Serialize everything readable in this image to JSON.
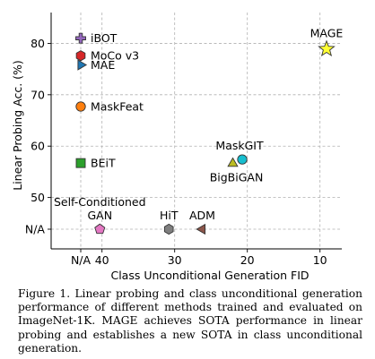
{
  "chart_data": {
    "type": "scatter",
    "title": "",
    "xlabel": "Class Unconditional Generation FID",
    "ylabel": "Linear Probing Acc. (%)",
    "x_ticks": [
      {
        "label": "N/A",
        "value": null
      },
      {
        "label": "40",
        "value": 40
      },
      {
        "label": "30",
        "value": 30
      },
      {
        "label": "20",
        "value": 20
      },
      {
        "label": "10",
        "value": 10
      }
    ],
    "y_ticks": [
      {
        "label": "N/A",
        "value": null
      },
      {
        "label": "50",
        "value": 50
      },
      {
        "label": "60",
        "value": 60
      },
      {
        "label": "70",
        "value": 70
      },
      {
        "label": "80",
        "value": 80
      }
    ],
    "x_reversed": true,
    "x_range": [
      47,
      7
    ],
    "y_range": [
      40,
      86
    ],
    "grid": true,
    "points": [
      {
        "label": "iBOT",
        "x": null,
        "y": 81.0,
        "marker": "plus",
        "color": "#9467bd",
        "label_pos": "right"
      },
      {
        "label": "MoCo v3",
        "x": null,
        "y": 77.6,
        "marker": "hexagon",
        "color": "#d62728",
        "label_pos": "right"
      },
      {
        "label": "MAE",
        "x": null,
        "y": 75.8,
        "marker": "triangle-right",
        "color": "#1f77b4",
        "label_pos": "right"
      },
      {
        "label": "MaskFeat",
        "x": null,
        "y": 67.7,
        "marker": "circle",
        "color": "#ff7f0e",
        "label_pos": "right"
      },
      {
        "label": "BEiT",
        "x": null,
        "y": 56.7,
        "marker": "square",
        "color": "#2ca02c",
        "label_pos": "right"
      },
      {
        "label": "MAGE",
        "x": 9.1,
        "y": 78.9,
        "marker": "star",
        "color": "#ffff33",
        "label_pos": "above"
      },
      {
        "label": "MaskGIT",
        "x": 20.7,
        "y": 57.4,
        "marker": "circle",
        "color": "#17becf",
        "label_pos": "above"
      },
      {
        "label": "BigBiGAN",
        "x": 22.0,
        "y": 56.6,
        "marker": "triangle-up",
        "color": "#bcbd22",
        "label_pos": "below"
      },
      {
        "label": "Self-Conditioned\nGAN",
        "x": 40.3,
        "y": null,
        "marker": "pentagon",
        "color": "#e377c2",
        "label_pos": "above"
      },
      {
        "label": "HiT",
        "x": 30.8,
        "y": null,
        "marker": "hexagon",
        "color": "#7f7f7f",
        "label_pos": "above"
      },
      {
        "label": "ADM",
        "x": 26.2,
        "y": null,
        "marker": "triangle-left",
        "color": "#8c564b",
        "label_pos": "above"
      }
    ]
  },
  "caption": "Figure 1. Linear probing and class unconditional generation performance of different methods trained and evaluated on ImageNet-1K. MAGE achieves SOTA performance in linear probing and establishes a new SOTA in class unconditional generation."
}
